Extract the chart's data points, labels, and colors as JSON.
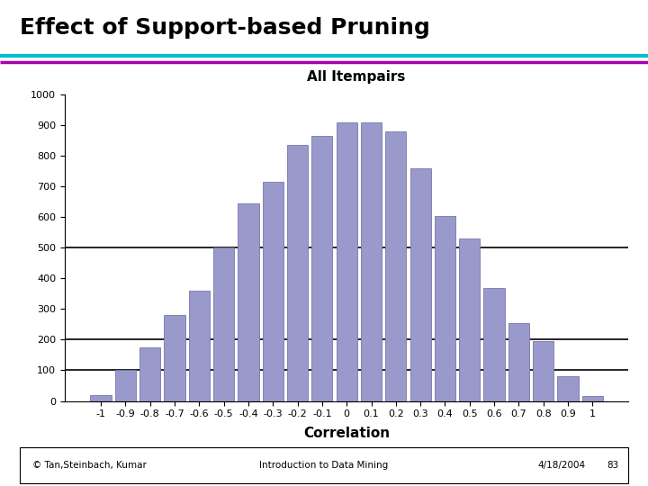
{
  "title": "Effect of Support-based Pruning",
  "subtitle": "All Itempairs",
  "xlabel": "Correlation",
  "ylabel": "",
  "bar_color": "#9999cc",
  "bar_edgecolor": "#7777aa",
  "categories": [
    "-1",
    "-0.9",
    "-0.8",
    "-0.7",
    "-0.6",
    "-0.5",
    "-0.4",
    "-0.3",
    "-0.2",
    "-0.1",
    "0",
    "0.1",
    "0.2",
    "0.3",
    "0.4",
    "0.5",
    "0.6",
    "0.7",
    "0.8",
    "0.9",
    "1"
  ],
  "values": [
    20,
    100,
    175,
    280,
    360,
    500,
    645,
    715,
    835,
    865,
    910,
    910,
    880,
    760,
    605,
    530,
    370,
    255,
    195,
    80,
    15
  ],
  "ylim": [
    0,
    1000
  ],
  "yticks": [
    0,
    100,
    200,
    300,
    400,
    500,
    600,
    700,
    800,
    900,
    1000
  ],
  "hlines": [
    100,
    200,
    500
  ],
  "hline_color": "#000000",
  "hline_linewidth": 1.2,
  "background_color": "#ffffff",
  "title_fontsize": 18,
  "title_fontweight": "bold",
  "subtitle_fontsize": 11,
  "subtitle_fontweight": "bold",
  "xlabel_fontsize": 11,
  "xlabel_fontweight": "bold",
  "tick_fontsize": 8,
  "footer_left": "© Tan,Steinbach, Kumar",
  "footer_center": "Introduction to Data Mining",
  "footer_right": "4/18/2004",
  "footer_page": "83",
  "line1_color": "#00c0d0",
  "line2_color": "#aa00aa",
  "line1_thickness": 3,
  "line2_thickness": 2.5
}
